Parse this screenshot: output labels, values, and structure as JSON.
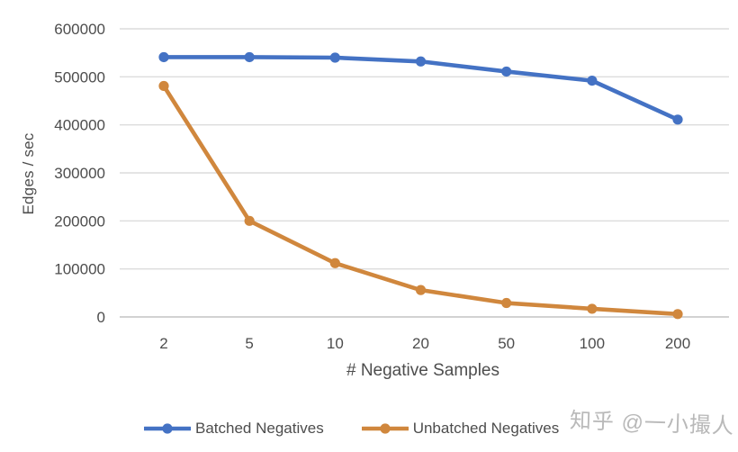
{
  "chart_data": {
    "type": "line",
    "title": "",
    "xlabel": "# Negative Samples",
    "ylabel": "Edges / sec",
    "categories": [
      "2",
      "5",
      "10",
      "20",
      "50",
      "100",
      "200"
    ],
    "series": [
      {
        "name": "Batched Negatives",
        "color": "#4472C4",
        "values": [
          541000,
          541000,
          540000,
          532000,
          511000,
          492000,
          411000
        ]
      },
      {
        "name": "Unbatched Negatives",
        "color": "#D0873D",
        "values": [
          481000,
          200000,
          112000,
          56000,
          29000,
          17000,
          6000
        ]
      }
    ],
    "ylim": [
      0,
      600000
    ],
    "yticks": [
      "0",
      "100000",
      "200000",
      "300000",
      "400000",
      "500000",
      "600000"
    ],
    "grid": "horizontal",
    "grid_color": "#dcdcdc",
    "zero_line_color": "#c4c4c4",
    "tick_label_color": "#4d4d4d",
    "legend_position": "bottom"
  },
  "watermark": {
    "text": "知乎 @一小撮人"
  }
}
